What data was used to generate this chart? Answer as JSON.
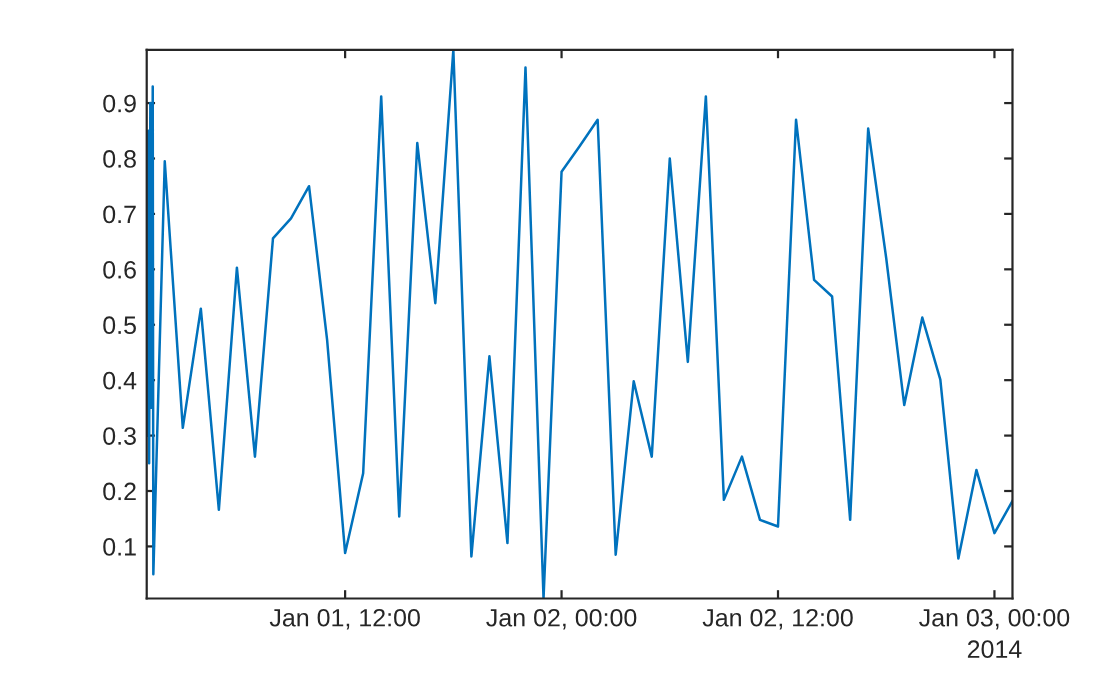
{
  "chart_data": {
    "type": "line",
    "x": [
      "2014-01-01T01:00",
      "2014-01-01T01:05",
      "2014-01-01T01:08",
      "2014-01-01T01:12",
      "2014-01-01T01:15",
      "2014-01-01T01:18",
      "2014-01-01T01:20",
      "2014-01-01T01:22",
      "2014-01-01T02:00",
      "2014-01-01T03:00",
      "2014-01-01T04:00",
      "2014-01-01T05:00",
      "2014-01-01T06:00",
      "2014-01-01T07:00",
      "2014-01-01T08:00",
      "2014-01-01T09:00",
      "2014-01-01T10:00",
      "2014-01-01T11:00",
      "2014-01-01T12:00",
      "2014-01-01T13:00",
      "2014-01-01T14:00",
      "2014-01-01T15:00",
      "2014-01-01T16:00",
      "2014-01-01T17:00",
      "2014-01-01T18:00",
      "2014-01-01T19:00",
      "2014-01-01T20:00",
      "2014-01-01T21:00",
      "2014-01-01T22:00",
      "2014-01-01T23:00",
      "2014-01-02T00:00",
      "2014-01-02T01:00",
      "2014-01-02T02:00",
      "2014-01-02T03:00",
      "2014-01-02T04:00",
      "2014-01-02T05:00",
      "2014-01-02T06:00",
      "2014-01-02T07:00",
      "2014-01-02T08:00",
      "2014-01-02T09:00",
      "2014-01-02T10:00",
      "2014-01-02T11:00",
      "2014-01-02T12:00",
      "2014-01-02T13:00",
      "2014-01-02T14:00",
      "2014-01-02T15:00",
      "2014-01-02T16:00",
      "2014-01-02T17:00",
      "2014-01-02T18:00",
      "2014-01-02T19:00",
      "2014-01-02T20:00",
      "2014-01-02T21:00",
      "2014-01-02T22:00",
      "2014-01-02T23:00",
      "2014-01-03T00:00",
      "2014-01-03T01:00"
    ],
    "series": [
      {
        "color": "#0072bd",
        "values": [
          0.3,
          0.85,
          0.25,
          0.9,
          0.35,
          0.6,
          0.93,
          0.05,
          0.795,
          0.314,
          0.529,
          0.166,
          0.603,
          0.262,
          0.656,
          0.692,
          0.75,
          0.473,
          0.088,
          0.232,
          0.912,
          0.154,
          0.828,
          0.539,
          0.996,
          0.082,
          0.443,
          0.106,
          0.964,
          0.006,
          0.776,
          0.822,
          0.87,
          0.085,
          0.398,
          0.262,
          0.8,
          0.433,
          0.912,
          0.184,
          0.262,
          0.148,
          0.136,
          0.87,
          0.581,
          0.551,
          0.148,
          0.854,
          0.62,
          0.355,
          0.513,
          0.401,
          0.078,
          0.238,
          0.124,
          0.182
        ]
      }
    ],
    "xlim": [
      "2014-01-01T01:00",
      "2014-01-03T01:00"
    ],
    "xticks": [
      {
        "value": "2014-01-01T12:00",
        "label": "Jan 01, 12:00"
      },
      {
        "value": "2014-01-02T00:00",
        "label": "Jan 02, 00:00"
      },
      {
        "value": "2014-01-02T12:00",
        "label": "Jan 02, 12:00"
      },
      {
        "value": "2014-01-03T00:00",
        "label": "Jan 03, 00:00"
      }
    ],
    "ylim": [
      0.006,
      0.996
    ],
    "yticks": [
      0.1,
      0.2,
      0.3,
      0.4,
      0.5,
      0.6,
      0.7,
      0.8,
      0.9
    ],
    "annotations": [
      "2014"
    ],
    "grid": false,
    "marker": "none",
    "line_style": "solid"
  }
}
